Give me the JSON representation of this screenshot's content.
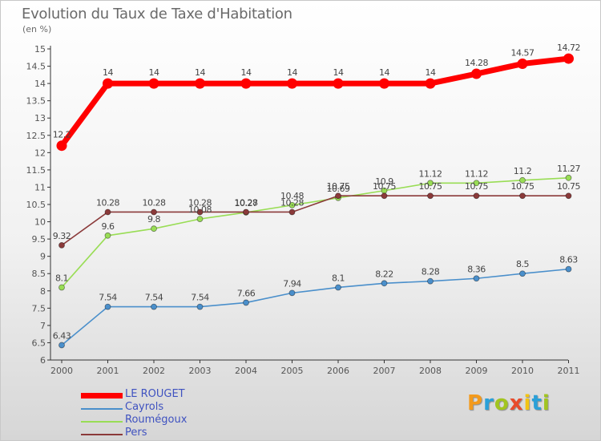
{
  "header": {
    "title": "Evolution du Taux de Taxe d'Habitation",
    "unit": "(en %)"
  },
  "logo": {
    "text": "Proxiti",
    "colors": [
      "#f39a1c",
      "#2aa0d8",
      "#a2c520",
      "#e84b2b",
      "#f2c413",
      "#2aa0d8",
      "#a2c520"
    ]
  },
  "chart_data": {
    "type": "line",
    "title": "Evolution du Taux de Taxe d'Habitation",
    "ylabel": "(en %)",
    "xlabel": "",
    "x": [
      "2000",
      "2001",
      "2002",
      "2003",
      "2004",
      "2005",
      "2006",
      "2007",
      "2008",
      "2009",
      "2010",
      "2011"
    ],
    "ylim": [
      6,
      15
    ],
    "yticks": [
      "6",
      "6.5",
      "7",
      "7.5",
      "8",
      "8.5",
      "9",
      "9.5",
      "10",
      "10.5",
      "11",
      "11.5",
      "12",
      "12.5",
      "13",
      "13.5",
      "14",
      "14.5",
      "15"
    ],
    "grid": false,
    "legend_position": "bottom-left",
    "series": [
      {
        "name": "LE ROUGET",
        "color": "#ff0000",
        "values": [
          12.2,
          14,
          14,
          14,
          14,
          14,
          14,
          14,
          14,
          14.28,
          14.57,
          14.72
        ],
        "labels": [
          "12.2",
          "14",
          "14",
          "14",
          "14",
          "14",
          "14",
          "14",
          "14",
          "14.28",
          "14.57",
          "14.72"
        ]
      },
      {
        "name": "Cayrols",
        "color": "#4a8fcb",
        "values": [
          6.43,
          7.54,
          7.54,
          7.54,
          7.66,
          7.94,
          8.1,
          8.22,
          8.28,
          8.36,
          8.5,
          8.63
        ],
        "labels": [
          "6.43",
          "7.54",
          "7.54",
          "7.54",
          "7.66",
          "7.94",
          "8.1",
          "8.22",
          "8.28",
          "8.36",
          "8.5",
          "8.63"
        ]
      },
      {
        "name": "Roumégoux",
        "color": "#99dd55",
        "values": [
          8.1,
          9.6,
          9.8,
          10.08,
          10.27,
          10.48,
          10.69,
          10.9,
          11.12,
          11.12,
          11.2,
          11.27
        ],
        "labels": [
          "8.1",
          "9.6",
          "9.8",
          "10.08",
          "10.27",
          "10.48",
          "10.69",
          "10.9",
          "11.12",
          "11.12",
          "11.2",
          "11.27"
        ]
      },
      {
        "name": "Pers",
        "color": "#8b3a3a",
        "values": [
          9.32,
          10.28,
          10.28,
          10.28,
          10.28,
          10.28,
          10.75,
          10.75,
          10.75,
          10.75,
          10.75,
          10.75
        ],
        "labels": [
          "9.32",
          "10.28",
          "10.28",
          "10.28",
          "10.28",
          "10.28",
          "10.75",
          "10.75",
          "10.75",
          "10.75",
          "10.75",
          "10.75"
        ]
      }
    ]
  }
}
